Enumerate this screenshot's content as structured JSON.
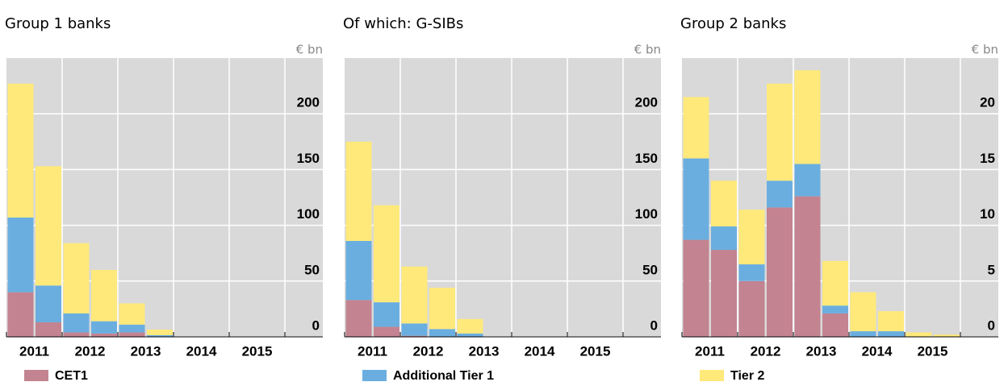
{
  "chart_data": [
    {
      "type": "bar",
      "title": "Group 1 banks",
      "unit": "€ bn",
      "stacked": true,
      "categories": [
        "2011",
        null,
        "2012",
        null,
        "2013",
        null,
        "2014",
        null,
        "2015",
        null
      ],
      "series": [
        {
          "name": "CET1",
          "color": "#c38390",
          "values": [
            40,
            13,
            4,
            3,
            4,
            0,
            0,
            0,
            0,
            0
          ]
        },
        {
          "name": "Additional Tier 1",
          "color": "#6aaee0",
          "values": [
            67,
            33,
            17,
            11,
            7,
            1.5,
            0,
            0,
            0,
            0
          ]
        },
        {
          "name": "Tier 2",
          "color": "#ffe97a",
          "values": [
            120,
            107,
            63,
            46,
            19,
            5,
            0,
            0,
            0,
            0
          ]
        }
      ],
      "ylim": [
        0,
        250
      ],
      "yticks": [
        0,
        50,
        100,
        150,
        200
      ],
      "grid": true
    },
    {
      "type": "bar",
      "title": "Of which: G-SIBs",
      "unit": "€ bn",
      "stacked": true,
      "categories": [
        "2011",
        null,
        "2012",
        null,
        "2013",
        null,
        "2014",
        null,
        "2015",
        null
      ],
      "series": [
        {
          "name": "CET1",
          "color": "#c38390",
          "values": [
            33,
            9,
            1,
            0,
            0,
            0,
            0,
            0,
            0,
            0
          ]
        },
        {
          "name": "Additional Tier 1",
          "color": "#6aaee0",
          "values": [
            53,
            22,
            11,
            7,
            3,
            0,
            0,
            0,
            0,
            0
          ]
        },
        {
          "name": "Tier 2",
          "color": "#ffe97a",
          "values": [
            89,
            87,
            51,
            37,
            13,
            0,
            0,
            0,
            0,
            0
          ]
        }
      ],
      "ylim": [
        0,
        250
      ],
      "yticks": [
        0,
        50,
        100,
        150,
        200
      ],
      "grid": true
    },
    {
      "type": "bar",
      "title": "Group 2 banks",
      "unit": "€ bn",
      "stacked": true,
      "categories": [
        "2011",
        null,
        "2012",
        null,
        "2013",
        null,
        "2014",
        null,
        "2015",
        null
      ],
      "series": [
        {
          "name": "CET1",
          "color": "#c38390",
          "values": [
            8.7,
            7.8,
            5,
            11.6,
            12.6,
            2.1,
            0,
            0,
            0,
            0
          ]
        },
        {
          "name": "Additional Tier 1",
          "color": "#6aaee0",
          "values": [
            7.3,
            2.1,
            1.5,
            2.4,
            2.9,
            0.7,
            0.5,
            0.5,
            0,
            0
          ]
        },
        {
          "name": "Tier 2",
          "color": "#ffe97a",
          "values": [
            5.5,
            4.1,
            4.9,
            8.7,
            8.4,
            4.0,
            3.5,
            1.8,
            0.4,
            0.2
          ]
        }
      ],
      "ylim": [
        0,
        25
      ],
      "yticks": [
        0,
        5,
        10,
        15,
        20
      ],
      "grid": true
    }
  ]
}
